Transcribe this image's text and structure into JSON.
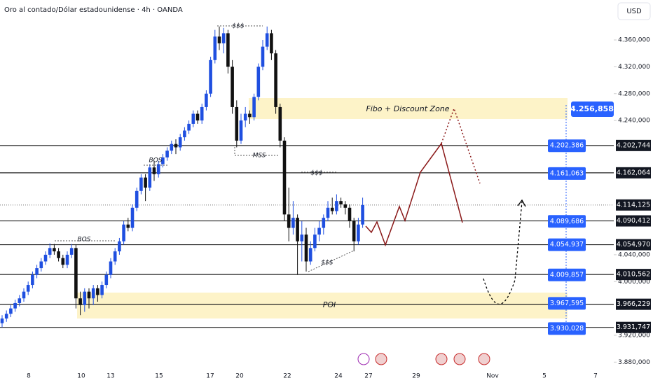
{
  "chart_data": {
    "type": "candlestick",
    "title": "Oro al contado/Dólar estadounidense · 4h · OANDA",
    "currency": "USD",
    "up_color": "#1f4fe0",
    "down_color": "#111111",
    "ylim": [
      3872,
      4419.5
    ],
    "yticks": [
      {
        "value": 4360,
        "label": "4.360,000"
      },
      {
        "value": 4320,
        "label": "4.320,000"
      },
      {
        "value": 4280,
        "label": "4.280,000"
      },
      {
        "value": 4240,
        "label": "4.240,000"
      },
      {
        "value": 4040,
        "label": "4.040,000"
      },
      {
        "value": 4000,
        "label": "4.000,000"
      },
      {
        "value": 3920,
        "label": "3.920,000"
      },
      {
        "value": 3880,
        "label": "3.880,000"
      }
    ],
    "x_labels": [
      "8",
      "10",
      "13",
      "15",
      "17",
      "20",
      "22",
      "24",
      "27",
      "29",
      "Nov",
      "5",
      "7"
    ],
    "ohlc": [
      [
        3938,
        3950,
        3932,
        3945
      ],
      [
        3945,
        3957,
        3940,
        3952
      ],
      [
        3952,
        3965,
        3947,
        3960
      ],
      [
        3960,
        3973,
        3955,
        3968
      ],
      [
        3968,
        3980,
        3963,
        3975
      ],
      [
        3975,
        3990,
        3970,
        3985
      ],
      [
        3985,
        4000,
        3980,
        3995
      ],
      [
        3995,
        4015,
        3990,
        4010
      ],
      [
        4010,
        4025,
        4005,
        4020
      ],
      [
        4020,
        4035,
        4015,
        4030
      ],
      [
        4030,
        4045,
        4025,
        4040
      ],
      [
        4040,
        4057,
        4035,
        4050
      ],
      [
        4050,
        4056,
        4040,
        4045
      ],
      [
        4045,
        4050,
        4030,
        4035
      ],
      [
        4035,
        4040,
        4020,
        4025
      ],
      [
        4025,
        4045,
        4020,
        4040
      ],
      [
        4040,
        4056,
        4035,
        4050
      ],
      [
        4050,
        4055,
        3960,
        3975
      ],
      [
        3975,
        3985,
        3950,
        3965
      ],
      [
        3965,
        3990,
        3955,
        3985
      ],
      [
        3985,
        3990,
        3960,
        3975
      ],
      [
        3975,
        3995,
        3965,
        3990
      ],
      [
        3990,
        3995,
        3970,
        3980
      ],
      [
        3980,
        4000,
        3975,
        3995
      ],
      [
        3995,
        4015,
        3990,
        4010
      ],
      [
        4010,
        4035,
        4005,
        4030
      ],
      [
        4030,
        4050,
        4025,
        4045
      ],
      [
        4045,
        4065,
        4040,
        4060
      ],
      [
        4060,
        4090,
        4055,
        4085
      ],
      [
        4085,
        4095,
        4075,
        4080
      ],
      [
        4080,
        4115,
        4075,
        4110
      ],
      [
        4110,
        4140,
        4105,
        4135
      ],
      [
        4135,
        4160,
        4130,
        4155
      ],
      [
        4155,
        4160,
        4120,
        4140
      ],
      [
        4140,
        4175,
        4135,
        4170
      ],
      [
        4170,
        4180,
        4150,
        4160
      ],
      [
        4160,
        4180,
        4155,
        4175
      ],
      [
        4175,
        4190,
        4170,
        4185
      ],
      [
        4185,
        4200,
        4180,
        4195
      ],
      [
        4195,
        4210,
        4190,
        4205
      ],
      [
        4205,
        4212,
        4190,
        4200
      ],
      [
        4200,
        4220,
        4195,
        4215
      ],
      [
        4215,
        4230,
        4210,
        4225
      ],
      [
        4225,
        4240,
        4220,
        4235
      ],
      [
        4235,
        4255,
        4230,
        4250
      ],
      [
        4250,
        4255,
        4235,
        4240
      ],
      [
        4240,
        4265,
        4235,
        4260
      ],
      [
        4260,
        4285,
        4255,
        4280
      ],
      [
        4280,
        4335,
        4275,
        4330
      ],
      [
        4330,
        4375,
        4325,
        4365
      ],
      [
        4365,
        4380,
        4345,
        4355
      ],
      [
        4355,
        4378,
        4340,
        4370
      ],
      [
        4370,
        4375,
        4310,
        4320
      ],
      [
        4320,
        4330,
        4250,
        4260
      ],
      [
        4260,
        4270,
        4200,
        4210
      ],
      [
        4210,
        4250,
        4205,
        4240
      ],
      [
        4240,
        4260,
        4230,
        4250
      ],
      [
        4250,
        4255,
        4235,
        4245
      ],
      [
        4245,
        4280,
        4240,
        4275
      ],
      [
        4275,
        4325,
        4270,
        4320
      ],
      [
        4320,
        4360,
        4315,
        4350
      ],
      [
        4350,
        4380,
        4345,
        4370
      ],
      [
        4370,
        4375,
        4330,
        4340
      ],
      [
        4340,
        4345,
        4250,
        4260
      ],
      [
        4260,
        4265,
        4200,
        4210
      ],
      [
        4210,
        4215,
        4090,
        4100
      ],
      [
        4100,
        4140,
        4060,
        4080
      ],
      [
        4080,
        4120,
        4070,
        4095
      ],
      [
        4095,
        4100,
        4010,
        4060
      ],
      [
        4060,
        4090,
        4030,
        4070
      ],
      [
        4070,
        4080,
        4015,
        4030
      ],
      [
        4030,
        4060,
        4025,
        4050
      ],
      [
        4050,
        4080,
        4045,
        4070
      ],
      [
        4070,
        4090,
        4060,
        4080
      ],
      [
        4080,
        4100,
        4070,
        4095
      ],
      [
        4095,
        4120,
        4090,
        4110
      ],
      [
        4110,
        4125,
        4100,
        4105
      ],
      [
        4105,
        4130,
        4100,
        4120
      ],
      [
        4120,
        4125,
        4110,
        4115
      ],
      [
        4115,
        4120,
        4100,
        4110
      ],
      [
        4110,
        4115,
        4080,
        4090
      ],
      [
        4090,
        4095,
        4045,
        4060
      ],
      [
        4060,
        4095,
        4055,
        4085
      ],
      [
        4085,
        4125,
        4080,
        4114
      ]
    ],
    "levels": [
      {
        "value": 4202.744,
        "label": "4.202,744"
      },
      {
        "value": 4162.064,
        "label": "4.162,064"
      },
      {
        "value": 4090.412,
        "label": "4.090,412"
      },
      {
        "value": 4054.97,
        "label": "4.054,970"
      },
      {
        "value": 4010.562,
        "label": "4.010,562"
      },
      {
        "value": 3966.229,
        "label": "3.966,229"
      },
      {
        "value": 3931.747,
        "label": "3.931,747"
      }
    ],
    "last": {
      "value": 4114.125,
      "label": "4.114,125"
    },
    "target_high": {
      "value": 4256.858,
      "label": "4.256,858"
    },
    "targets": [
      {
        "value": 4202.386,
        "label": "4.202,386"
      },
      {
        "value": 4161.063,
        "label": "4.161,063"
      },
      {
        "value": 4089.686,
        "label": "4.089,686"
      },
      {
        "value": 4054.937,
        "label": "4.054,937"
      },
      {
        "value": 4009.857,
        "label": "4.009,857"
      },
      {
        "value": 3967.595,
        "label": "3.967,595"
      },
      {
        "value": 3930.028,
        "label": "3.930,028"
      }
    ],
    "annotations": {
      "fibo_zone": "Fibo + Discount Zone",
      "poi": "POI",
      "bos": "BOS",
      "liquidity": "$$$",
      "mss": "MSS"
    }
  }
}
